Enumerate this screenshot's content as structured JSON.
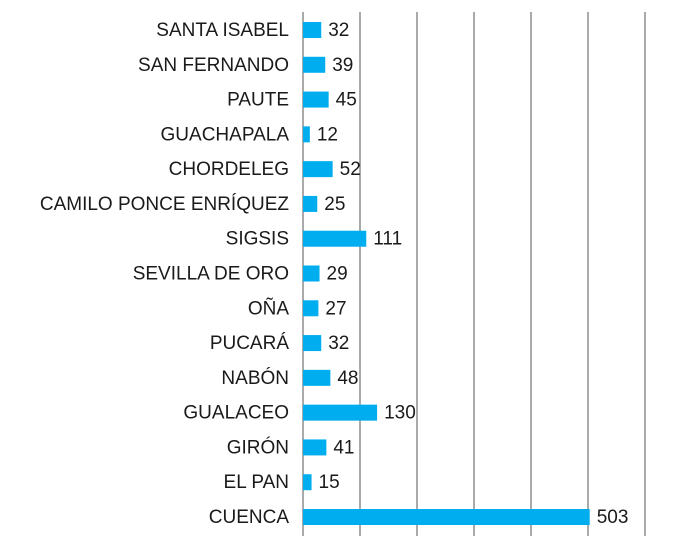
{
  "chart_data": {
    "type": "bar",
    "orientation": "horizontal",
    "categories": [
      "SANTA ISABEL",
      "SAN FERNANDO",
      "PAUTE",
      "GUACHAPALA",
      "CHORDELEG",
      "CAMILO PONCE ENRÍQUEZ",
      "SIGSIS",
      "SEVILLA DE ORO",
      "OÑA",
      "PUCARÁ",
      "NABÓN",
      "GUALACEO",
      "GIRÓN",
      "EL PAN",
      "CUENCA"
    ],
    "values": [
      32,
      39,
      45,
      12,
      52,
      25,
      111,
      29,
      27,
      32,
      48,
      130,
      41,
      15,
      503
    ],
    "color": "#00aeef",
    "xlim": [
      0,
      600
    ],
    "xticks": [
      0,
      100,
      200,
      300,
      400,
      500,
      600
    ],
    "grid": true
  }
}
